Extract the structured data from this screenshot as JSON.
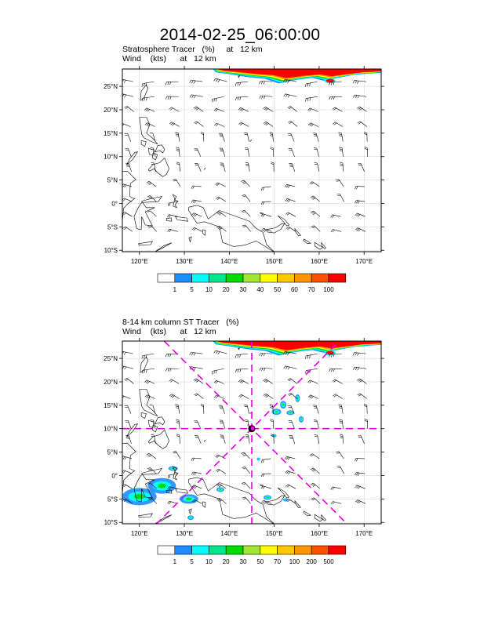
{
  "title": "2014-02-25_06:00:00",
  "panel_top": {
    "line1": "Stratosphere Tracer   (%)     at   12 km",
    "line2": "Wind    (kts)      at   12 km",
    "lat_labels": [
      "25°N",
      "20°N",
      "15°N",
      "10°N",
      "5°N",
      "0°",
      "5°S",
      "10°S"
    ],
    "lon_labels": [
      "120°E",
      "130°E",
      "140°E",
      "150°E",
      "160°E",
      "170°E"
    ],
    "colorbar_labels": [
      "1",
      "5",
      "10",
      "20",
      "30",
      "40",
      "50",
      "60",
      "70",
      "100"
    ],
    "colorbar_colors": [
      "#ffffff",
      "#1e8cff",
      "#00ffff",
      "#00e68c",
      "#00dc00",
      "#a0e632",
      "#ffff00",
      "#ffc800",
      "#ff9600",
      "#ff5000",
      "#ff0000"
    ]
  },
  "panel_bottom": {
    "line1": "8-14 km column ST Tracer   (%)",
    "line2": "Wind    (kts)      at   12 km",
    "lat_labels": [
      "25°N",
      "20°N",
      "15°N",
      "10°N",
      "5°N",
      "0°",
      "5°S",
      "10°S"
    ],
    "lon_labels": [
      "120°E",
      "130°E",
      "140°E",
      "150°E",
      "160°E",
      "170°E"
    ],
    "colorbar_labels": [
      "1",
      "5",
      "10",
      "20",
      "30",
      "50",
      "70",
      "100",
      "200",
      "500"
    ],
    "colorbar_colors": [
      "#ffffff",
      "#1e8cff",
      "#00ffff",
      "#00e68c",
      "#00dc00",
      "#a0e632",
      "#ffff00",
      "#ffc800",
      "#ff9600",
      "#ff5000",
      "#ff0000"
    ],
    "center_marker": {
      "lon": 145,
      "lat": 10
    }
  },
  "colors": {
    "dashed_lines": "#e600e6",
    "grid": "#d0d0d0",
    "coast": "#000000"
  }
}
